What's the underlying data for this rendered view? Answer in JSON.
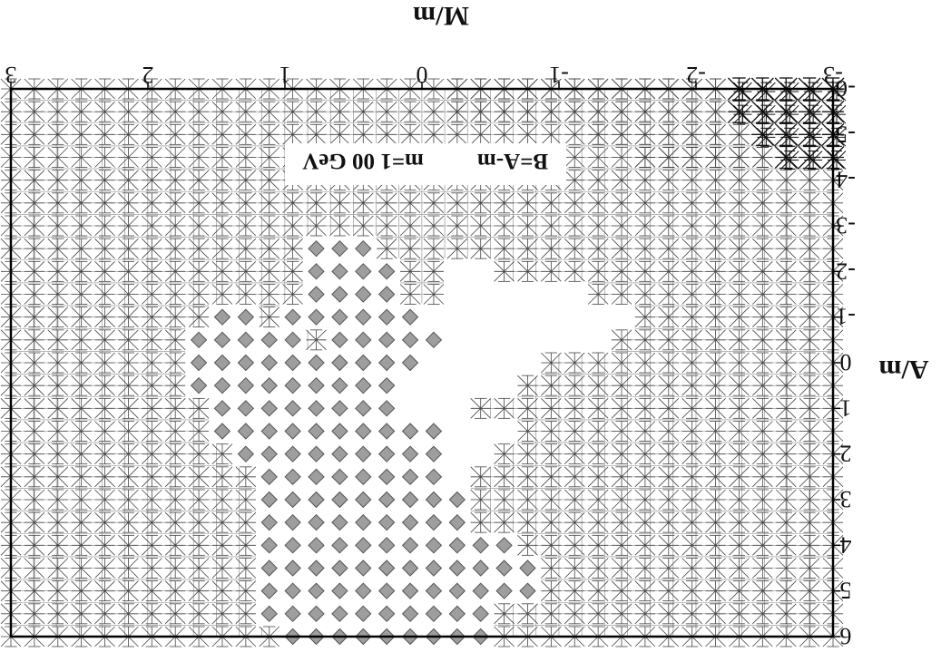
{
  "chart_data": {
    "type": "scatter",
    "orientation": "rotated-180",
    "title": "",
    "annotation": {
      "line1": "B=A-m",
      "line2": "m=1 00 GeV"
    },
    "xlabel": "M/m",
    "ylabel": "A/m",
    "xlim": [
      -3,
      3
    ],
    "ylim": [
      -6,
      6
    ],
    "x_ticks": [
      "-3",
      "-2",
      "-1",
      "0",
      "1",
      "2",
      "3"
    ],
    "y_ticks": [
      "-6",
      "-5",
      "-4",
      "-3",
      "-2",
      "-1",
      "0",
      "1",
      "2",
      "3",
      "4",
      "5",
      "6"
    ],
    "grid_step": {
      "x": 0.1667,
      "y": 0.5
    },
    "markers": {
      "cross": "excluded point (× over +)",
      "dense": "heavily excluded point (overlapping crosses)",
      "diamond": "allowed point",
      "blank": "no marker"
    },
    "map": [
      "*****++++++++++++XXXXXXXXXXXXXXXXXXX",
      "*****++++++++++++XXXXXXXXXXXXXXXXXXX",
      "****+++++++XXXXXXXXXXXXXXXXXXXXXXXXX",
      "***++++++XXXXXXXXXXXXXXXXXXXXXXXXXXX",
      "XXXXXXXXXXXXXXXXXXXXXXXXXXXXXXXXXXXX",
      "XXXXXXXXXXXXXXXXXXXXXXXXXXXXXXXXXXXX",
      "XXXXXXXXXXXXXXXXXXXXXXXXXXXXXXXXXXXX",
      "XXXXXXXXXXXXXXXXXXXXDDDXXXXXXXXXXXXX",
      "XXXXXXXXXXXXXXX..XXDDDDXXXXXXXXXXXXX",
      "XXXXXXXXXXX......XXDDDDXXXXXXXXXXXXX",
      "XXXXXXXXX.........DDDDDDXDDXXXXXXXXX",
      "XXXXXXXXXX.......DDDDDXDDDDDXXXXXXXX",
      "XXXXXXXXXXXXX.....DDDDDDDDDDXXXXXXXX",
      "XXXXXXXXXXXXXX.....DDDDDDDDDXXXXXXXX",
      "XXXXXXXXXXXXXXXX...DDDDDDDDXXXXXXXXX",
      "XXXXXXXXXXXXXX...DDDDDDDDDDXXXXXXXXX",
      "XXXXXXXXXXXXXXX..DDDDDDDDDXXXXXXXXXX",
      "XXXXXXXXXXXXXXXX.DDDDDDDDXXXXXXXXXXX",
      "XXXXXXXXXXXXXXXXDDDDDDDDDXXXXXXXXXXX",
      "XXXXXXXXXXXXXXXXDDDDDDDDDXXXXXXXXXXX",
      "XXXXXXXXXXXXXXDDDDDDDDDDDXXXXXXXXXXX",
      "XXXXXXXXXXXXXDDDDDDDDDDDDXXXXXXXXXXX",
      "XXXXXXXXXXXXXDDDDDDDDDDDDXXXXXXXXXXX",
      "XXXXXXXXXXXXXXXDDDDDDDDDDXXXXXXXXXXX",
      "XXXXXXXXXXXXXXXDDDDDDDDDXXXXXXXXXXXX"
    ],
    "grid_on": true,
    "legend": "none"
  }
}
